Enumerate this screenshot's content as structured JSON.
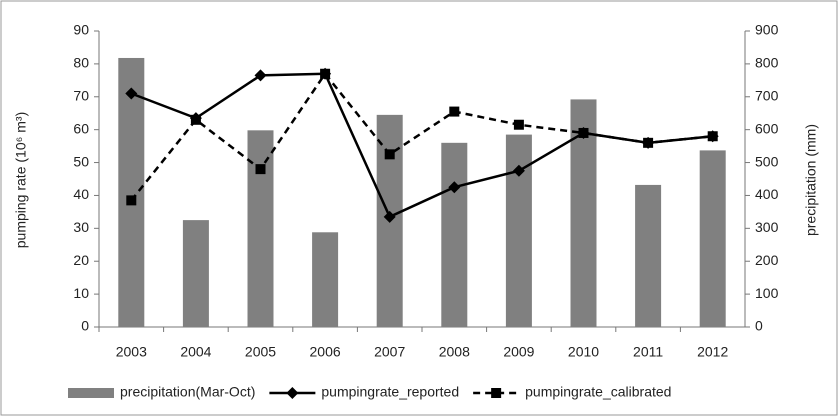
{
  "chart_data": {
    "type": "combo",
    "categories": [
      "2003",
      "2004",
      "2005",
      "2006",
      "2007",
      "2008",
      "2009",
      "2010",
      "2011",
      "2012"
    ],
    "y_label": "pumping rate (10⁶ m³)",
    "y2_label": "precipitation (mm)",
    "ylim": [
      0,
      90
    ],
    "yticks": [
      0,
      10,
      20,
      30,
      40,
      50,
      60,
      70,
      80,
      90
    ],
    "y2lim": [
      0,
      900
    ],
    "y2ticks": [
      0,
      100,
      200,
      300,
      400,
      500,
      600,
      700,
      800,
      900
    ],
    "series": [
      {
        "name": "precipitation(Mar-Oct)",
        "type": "bar",
        "axis": "y2",
        "color": "#808080",
        "values": [
          818,
          325,
          598,
          288,
          645,
          560,
          585,
          692,
          432,
          537
        ]
      },
      {
        "name": "pumpingrate_reported",
        "type": "line",
        "marker": "diamond",
        "dashed": false,
        "color": "#000000",
        "values": [
          71,
          63.5,
          76.5,
          77,
          33.5,
          42.5,
          47.5,
          59,
          56,
          58
        ]
      },
      {
        "name": "pumpingrate_calibrated",
        "type": "line",
        "marker": "square",
        "dashed": true,
        "color": "#000000",
        "values": [
          38.5,
          63,
          48,
          77,
          52.5,
          65.5,
          61.5,
          59,
          56,
          58
        ]
      }
    ]
  }
}
